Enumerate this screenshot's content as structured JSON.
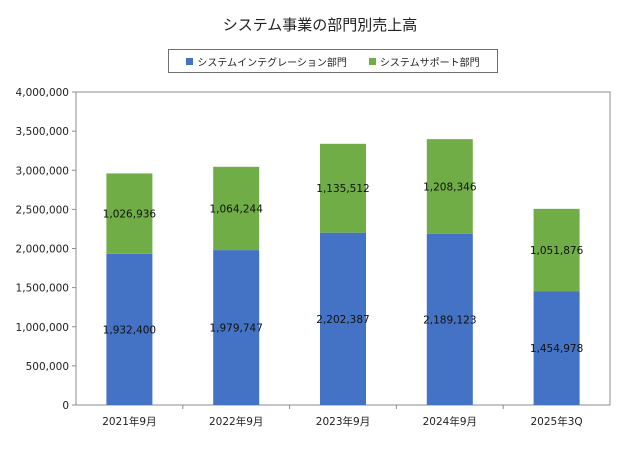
{
  "chart_data": {
    "type": "bar",
    "stacked": true,
    "title": "システム事業の部門別売上高",
    "categories": [
      "2021年9月",
      "2022年9月",
      "2023年9月",
      "2024年9月",
      "2025年3Q"
    ],
    "series": [
      {
        "name": "システムインテグレーション部門",
        "values": [
          1932400,
          1979747,
          2202387,
          2189123,
          1454978
        ],
        "labels": [
          "1,932,400",
          "1,979,747",
          "2,202,387",
          "2,189,123",
          "1,454,978"
        ],
        "color": "#4472C4"
      },
      {
        "name": "システムサポート部門",
        "values": [
          1026936,
          1064244,
          1135512,
          1208346,
          1051876
        ],
        "labels": [
          "1,026,936",
          "1,064,244",
          "1,135,512",
          "1,208,346",
          "1,051,876"
        ],
        "color": "#70AD47"
      }
    ],
    "ylim": [
      0,
      4000000
    ],
    "yticks": [
      0,
      500000,
      1000000,
      1500000,
      2000000,
      2500000,
      3000000,
      3500000,
      4000000
    ],
    "ytick_labels": [
      "0",
      "500,000",
      "1,000,000",
      "1,500,000",
      "2,000,000",
      "2,500,000",
      "3,000,000",
      "3,500,000",
      "4,000,000"
    ],
    "grid": false,
    "legend_position": "top"
  }
}
